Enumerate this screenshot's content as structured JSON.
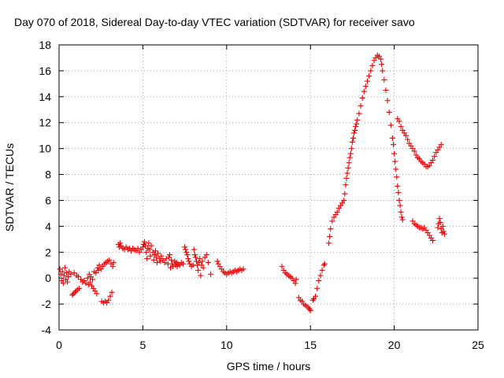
{
  "chart_data": {
    "type": "scatter",
    "title": "Day 070 of 2018, Sidereal Day-to-day VTEC variation (SDTVAR) for receiver savo",
    "xlabel": "GPS time / hours",
    "ylabel": "SDTVAR / TECUs",
    "xlim": [
      0,
      25
    ],
    "ylim": [
      -4,
      18
    ],
    "xticks": [
      "0",
      "5",
      "10",
      "15",
      "20",
      "25"
    ],
    "yticks": [
      "-4",
      "-2",
      "0",
      "2",
      "4",
      "6",
      "8",
      "10",
      "12",
      "14",
      "16",
      "18"
    ],
    "grid": true,
    "marker": "plus",
    "series": [
      {
        "name": "sdtvar",
        "color": "#e60000",
        "points": [
          [
            0.05,
            0.7
          ],
          [
            0.1,
            0.3
          ],
          [
            0.15,
            -0.2
          ],
          [
            0.2,
            0.5
          ],
          [
            0.25,
            -0.4
          ],
          [
            0.3,
            0.2
          ],
          [
            0.35,
            0.8
          ],
          [
            0.4,
            -0.1
          ],
          [
            0.45,
            0.4
          ],
          [
            0.5,
            -0.3
          ],
          [
            0.55,
            0.1
          ],
          [
            0.6,
            0.5
          ],
          [
            0.7,
            0.3
          ],
          [
            0.8,
            -1.3
          ],
          [
            0.85,
            -1.2
          ],
          [
            0.9,
            0.4
          ],
          [
            0.95,
            -1.1
          ],
          [
            1.0,
            -1.0
          ],
          [
            1.05,
            0.2
          ],
          [
            1.1,
            -0.9
          ],
          [
            1.15,
            0.1
          ],
          [
            1.2,
            -0.8
          ],
          [
            1.3,
            -0.1
          ],
          [
            1.4,
            -0.3
          ],
          [
            1.5,
            -0.2
          ],
          [
            1.6,
            -0.4
          ],
          [
            1.7,
            0.0
          ],
          [
            1.75,
            -0.5
          ],
          [
            1.8,
            0.3
          ],
          [
            1.85,
            -0.3
          ],
          [
            1.9,
            0.1
          ],
          [
            1.95,
            -0.6
          ],
          [
            2.0,
            -0.1
          ],
          [
            2.05,
            -0.8
          ],
          [
            2.1,
            0.5
          ],
          [
            2.15,
            -1.0
          ],
          [
            2.2,
            0.4
          ],
          [
            2.25,
            -1.2
          ],
          [
            2.3,
            0.8
          ],
          [
            2.35,
            0.6
          ],
          [
            2.4,
            1.0
          ],
          [
            2.5,
            0.7
          ],
          [
            2.55,
            -1.8
          ],
          [
            2.6,
            0.9
          ],
          [
            2.65,
            -1.9
          ],
          [
            2.7,
            1.1
          ],
          [
            2.75,
            -1.8
          ],
          [
            2.8,
            1.2
          ],
          [
            2.85,
            -1.9
          ],
          [
            2.9,
            1.3
          ],
          [
            2.95,
            -1.7
          ],
          [
            3.0,
            1.4
          ],
          [
            3.05,
            -1.4
          ],
          [
            3.1,
            1.1
          ],
          [
            3.15,
            -1.1
          ],
          [
            3.2,
            0.9
          ],
          [
            3.25,
            1.2
          ],
          [
            3.55,
            2.6
          ],
          [
            3.6,
            2.4
          ],
          [
            3.65,
            2.7
          ],
          [
            3.7,
            2.5
          ],
          [
            3.8,
            2.3
          ],
          [
            3.9,
            2.2
          ],
          [
            4.0,
            2.4
          ],
          [
            4.1,
            2.2
          ],
          [
            4.2,
            2.3
          ],
          [
            4.3,
            2.1
          ],
          [
            4.4,
            2.3
          ],
          [
            4.5,
            2.2
          ],
          [
            4.6,
            2.1
          ],
          [
            4.7,
            2.3
          ],
          [
            4.8,
            2.0
          ],
          [
            4.9,
            2.2
          ],
          [
            5.0,
            2.4
          ],
          [
            5.05,
            2.6
          ],
          [
            5.1,
            2.8
          ],
          [
            5.15,
            2.5
          ],
          [
            5.2,
            2.0
          ],
          [
            5.25,
            1.5
          ],
          [
            5.3,
            2.3
          ],
          [
            5.35,
            2.7
          ],
          [
            5.4,
            2.2
          ],
          [
            5.45,
            1.7
          ],
          [
            5.5,
            2.5
          ],
          [
            5.6,
            2.0
          ],
          [
            5.65,
            1.4
          ],
          [
            5.7,
            1.8
          ],
          [
            5.75,
            2.1
          ],
          [
            5.8,
            1.6
          ],
          [
            5.85,
            1.2
          ],
          [
            5.9,
            1.9
          ],
          [
            6.0,
            1.5
          ],
          [
            6.05,
            1.3
          ],
          [
            6.1,
            1.7
          ],
          [
            6.2,
            1.4
          ],
          [
            6.3,
            1.2
          ],
          [
            6.4,
            1.5
          ],
          [
            6.5,
            1.1
          ],
          [
            6.55,
            1.6
          ],
          [
            6.6,
            1.8
          ],
          [
            6.65,
            0.8
          ],
          [
            6.7,
            1.4
          ],
          [
            6.75,
            1.1
          ],
          [
            6.8,
            0.9
          ],
          [
            6.9,
            1.3
          ],
          [
            6.95,
            1.0
          ],
          [
            7.0,
            1.2
          ],
          [
            7.05,
            0.9
          ],
          [
            7.1,
            1.1
          ],
          [
            7.2,
            1.0
          ],
          [
            7.3,
            1.2
          ],
          [
            7.4,
            1.1
          ],
          [
            7.5,
            2.4
          ],
          [
            7.55,
            2.2
          ],
          [
            7.6,
            2.0
          ],
          [
            7.65,
            1.8
          ],
          [
            7.7,
            1.5
          ],
          [
            7.75,
            1.3
          ],
          [
            7.8,
            1.1
          ],
          [
            7.9,
            0.9
          ],
          [
            8.0,
            1.0
          ],
          [
            8.05,
            2.2
          ],
          [
            8.1,
            1.8
          ],
          [
            8.15,
            1.6
          ],
          [
            8.2,
            1.3
          ],
          [
            8.25,
            1.0
          ],
          [
            8.3,
            0.6
          ],
          [
            8.35,
            1.2
          ],
          [
            8.4,
            1.5
          ],
          [
            8.45,
            0.2
          ],
          [
            8.5,
            1.0
          ],
          [
            8.55,
            1.3
          ],
          [
            8.6,
            0.8
          ],
          [
            8.7,
            1.6
          ],
          [
            8.8,
            1.8
          ],
          [
            8.9,
            1.2
          ],
          [
            9.05,
            0.3
          ],
          [
            9.45,
            1.3
          ],
          [
            9.5,
            1.1
          ],
          [
            9.6,
            0.9
          ],
          [
            9.7,
            0.7
          ],
          [
            9.8,
            0.5
          ],
          [
            9.9,
            0.4
          ],
          [
            10.0,
            0.3
          ],
          [
            10.1,
            0.4
          ],
          [
            10.2,
            0.5
          ],
          [
            10.3,
            0.4
          ],
          [
            10.4,
            0.5
          ],
          [
            10.5,
            0.6
          ],
          [
            10.6,
            0.5
          ],
          [
            10.7,
            0.6
          ],
          [
            10.8,
            0.7
          ],
          [
            10.9,
            0.6
          ],
          [
            11.0,
            0.7
          ],
          [
            13.3,
            0.9
          ],
          [
            13.4,
            0.6
          ],
          [
            13.5,
            0.4
          ],
          [
            13.6,
            0.3
          ],
          [
            13.7,
            0.2
          ],
          [
            13.8,
            0.1
          ],
          [
            13.9,
            0.0
          ],
          [
            14.0,
            -0.2
          ],
          [
            14.1,
            -0.4
          ],
          [
            14.15,
            -0.1
          ],
          [
            14.3,
            -1.5
          ],
          [
            14.4,
            -1.7
          ],
          [
            14.5,
            -1.8
          ],
          [
            14.6,
            -2.0
          ],
          [
            14.7,
            -2.1
          ],
          [
            14.8,
            -2.2
          ],
          [
            14.9,
            -2.3
          ],
          [
            14.95,
            -2.4
          ],
          [
            15.0,
            -2.5
          ],
          [
            15.15,
            -1.7
          ],
          [
            15.2,
            -1.6
          ],
          [
            15.3,
            -1.4
          ],
          [
            15.4,
            -0.8
          ],
          [
            15.5,
            -0.2
          ],
          [
            15.6,
            0.2
          ],
          [
            15.7,
            0.6
          ],
          [
            15.8,
            1.0
          ],
          [
            15.85,
            1.1
          ],
          [
            16.1,
            2.7
          ],
          [
            16.15,
            3.2
          ],
          [
            16.2,
            3.8
          ],
          [
            16.3,
            4.4
          ],
          [
            16.4,
            4.7
          ],
          [
            16.5,
            4.9
          ],
          [
            16.6,
            5.1
          ],
          [
            16.7,
            5.4
          ],
          [
            16.8,
            5.6
          ],
          [
            16.9,
            5.8
          ],
          [
            17.0,
            6.0
          ],
          [
            17.05,
            6.5
          ],
          [
            17.1,
            7.2
          ],
          [
            17.15,
            7.7
          ],
          [
            17.2,
            8.1
          ],
          [
            17.25,
            8.5
          ],
          [
            17.3,
            8.9
          ],
          [
            17.35,
            9.3
          ],
          [
            17.4,
            9.6
          ],
          [
            17.45,
            10.0
          ],
          [
            17.5,
            10.5
          ],
          [
            17.55,
            10.8
          ],
          [
            17.6,
            11.2
          ],
          [
            17.65,
            11.4
          ],
          [
            17.7,
            11.7
          ],
          [
            17.75,
            11.9
          ],
          [
            17.8,
            12.2
          ],
          [
            17.9,
            12.7
          ],
          [
            18.0,
            13.3
          ],
          [
            18.1,
            13.9
          ],
          [
            18.2,
            14.4
          ],
          [
            18.3,
            14.8
          ],
          [
            18.4,
            15.2
          ],
          [
            18.5,
            15.6
          ],
          [
            18.6,
            16.0
          ],
          [
            18.7,
            16.4
          ],
          [
            18.8,
            16.8
          ],
          [
            18.9,
            17.0
          ],
          [
            19.0,
            17.2
          ],
          [
            19.1,
            17.1
          ],
          [
            19.2,
            16.9
          ],
          [
            19.25,
            16.5
          ],
          [
            19.3,
            16.0
          ],
          [
            19.4,
            15.3
          ],
          [
            19.5,
            14.5
          ],
          [
            19.6,
            13.7
          ],
          [
            19.7,
            12.8
          ],
          [
            19.8,
            11.8
          ],
          [
            19.9,
            10.8
          ],
          [
            19.95,
            10.3
          ],
          [
            20.0,
            9.6
          ],
          [
            20.05,
            9.0
          ],
          [
            20.1,
            8.4
          ],
          [
            20.15,
            7.8
          ],
          [
            20.2,
            7.1
          ],
          [
            20.25,
            6.6
          ],
          [
            20.3,
            6.0
          ],
          [
            20.35,
            5.6
          ],
          [
            20.4,
            5.1
          ],
          [
            20.45,
            4.7
          ],
          [
            20.5,
            4.5
          ],
          [
            20.2,
            12.3
          ],
          [
            20.3,
            12.1
          ],
          [
            20.4,
            11.7
          ],
          [
            20.5,
            11.4
          ],
          [
            20.6,
            11.2
          ],
          [
            20.7,
            11.0
          ],
          [
            20.8,
            10.7
          ],
          [
            20.9,
            10.4
          ],
          [
            21.0,
            10.2
          ],
          [
            21.1,
            10.0
          ],
          [
            21.2,
            9.8
          ],
          [
            21.3,
            9.5
          ],
          [
            21.4,
            9.3
          ],
          [
            21.5,
            9.2
          ],
          [
            21.6,
            9.0
          ],
          [
            21.7,
            8.9
          ],
          [
            21.8,
            8.8
          ],
          [
            21.9,
            8.6
          ],
          [
            22.0,
            8.6
          ],
          [
            22.1,
            8.7
          ],
          [
            22.2,
            8.9
          ],
          [
            22.3,
            9.1
          ],
          [
            22.4,
            9.4
          ],
          [
            22.5,
            9.7
          ],
          [
            22.6,
            9.9
          ],
          [
            22.7,
            10.1
          ],
          [
            22.8,
            10.3
          ],
          [
            21.1,
            4.4
          ],
          [
            21.2,
            4.2
          ],
          [
            21.3,
            4.1
          ],
          [
            21.4,
            4.0
          ],
          [
            21.5,
            3.9
          ],
          [
            21.6,
            3.9
          ],
          [
            21.7,
            3.8
          ],
          [
            21.8,
            3.9
          ],
          [
            21.9,
            3.7
          ],
          [
            22.0,
            3.5
          ],
          [
            22.1,
            3.3
          ],
          [
            22.2,
            3.1
          ],
          [
            22.3,
            2.9
          ],
          [
            22.6,
            3.9
          ],
          [
            22.65,
            4.2
          ],
          [
            22.7,
            4.6
          ],
          [
            22.75,
            4.3
          ],
          [
            22.8,
            3.8
          ],
          [
            22.85,
            3.5
          ],
          [
            22.9,
            4.0
          ],
          [
            22.95,
            3.6
          ],
          [
            23.0,
            3.4
          ]
        ]
      }
    ]
  }
}
